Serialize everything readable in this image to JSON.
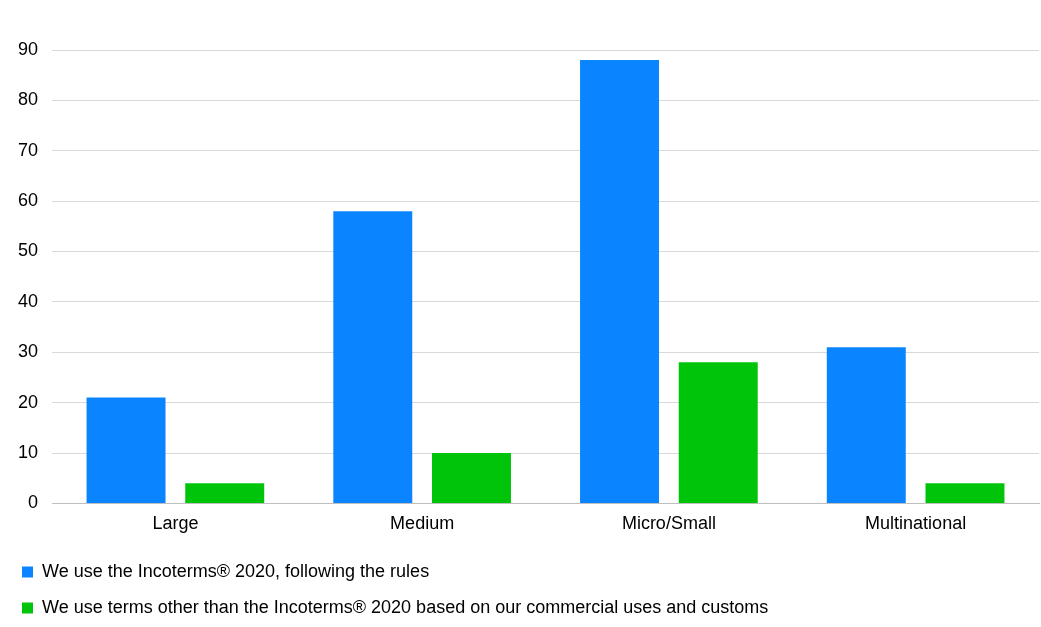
{
  "chart_data": {
    "type": "bar",
    "categories": [
      "Large",
      "Medium",
      "Micro/Small",
      "Multinational"
    ],
    "series": [
      {
        "name": "We use the Incoterms® 2020, following the rules",
        "color": "#0a84ff",
        "values": [
          21,
          58,
          88,
          31
        ]
      },
      {
        "name": "We use terms other than the Incoterms® 2020 based on our commercial uses and customs",
        "color": "#00c40a",
        "values": [
          4,
          10,
          28,
          4
        ]
      }
    ],
    "ylim": [
      0,
      90
    ],
    "yticks": [
      0,
      10,
      20,
      30,
      40,
      50,
      60,
      70,
      80,
      90
    ],
    "grid": "y",
    "legend": "bottom"
  }
}
